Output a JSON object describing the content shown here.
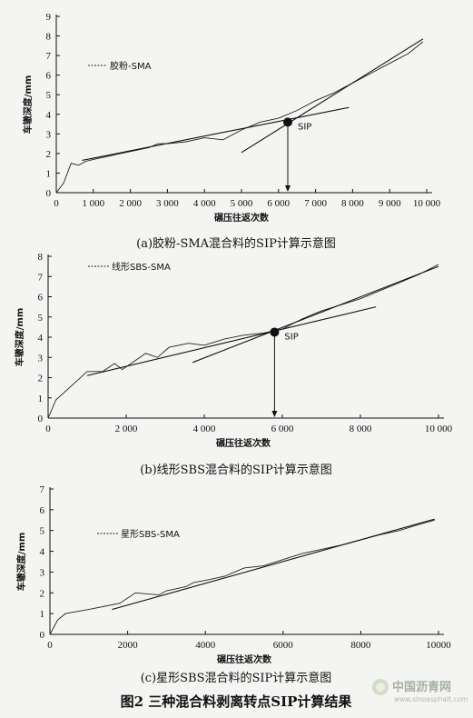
{
  "figure_title": "图2  三种混合料剥离转点SIP计算结果",
  "watermark": {
    "name": "中国沥青网",
    "url": "www.sinoasphalt.com"
  },
  "chart_data": [
    {
      "type": "line",
      "caption": "(a)胶粉-SMA混合料的SIP计算示意图",
      "xlabel": "碾压往返次数",
      "ylabel": "车辙深度/mm",
      "xlim": [
        0,
        10000
      ],
      "ylim": [
        0,
        9
      ],
      "xticks": [
        0,
        1000,
        2000,
        3000,
        4000,
        5000,
        6000,
        7000,
        8000,
        9000,
        10000
      ],
      "xtick_labels": [
        "0",
        "1 000",
        "2 000",
        "3 000",
        "4 000",
        "5 000",
        "6 000",
        "7 000",
        "8 000",
        "9 000",
        "10 000"
      ],
      "yticks": [
        0,
        1,
        2,
        3,
        4,
        5,
        6,
        7,
        8,
        9
      ],
      "legend": "胶粉-SMA",
      "sip_label": "SIP",
      "sip": {
        "x": 6250,
        "y": 3.6
      },
      "series": {
        "x": [
          0,
          200,
          400,
          600,
          800,
          1000,
          1500,
          2000,
          2500,
          2750,
          3000,
          3500,
          4000,
          4500,
          5000,
          5500,
          6000,
          6500,
          7000,
          7500,
          8000,
          8500,
          9000,
          9500,
          9900
        ],
        "y": [
          0,
          0.5,
          1.5,
          1.4,
          1.6,
          1.7,
          1.9,
          2.1,
          2.3,
          2.5,
          2.5,
          2.6,
          2.8,
          2.7,
          3.2,
          3.6,
          3.8,
          4.2,
          4.7,
          5.1,
          5.6,
          6.1,
          6.6,
          7.1,
          7.7
        ]
      },
      "fit1": {
        "x": [
          700,
          7900
        ],
        "y": [
          1.65,
          4.35
        ]
      },
      "fit2": {
        "x": [
          5000,
          9900
        ],
        "y": [
          2.05,
          7.85
        ]
      }
    },
    {
      "type": "line",
      "caption": "(b)线形SBS混合料的SIP计算示意图",
      "xlabel": "碾压往返次数",
      "ylabel": "车辙深度/mm",
      "xlim": [
        0,
        10000
      ],
      "ylim": [
        0,
        8
      ],
      "xticks": [
        0,
        2000,
        4000,
        6000,
        8000,
        10000
      ],
      "xtick_labels": [
        "0",
        "2 000",
        "4 000",
        "6 000",
        "8 000",
        "10 000"
      ],
      "yticks": [
        0,
        1,
        2,
        3,
        4,
        5,
        6,
        7,
        8
      ],
      "legend": "线形SBS-SMA",
      "sip_label": "SIP",
      "sip": {
        "x": 5800,
        "y": 4.25
      },
      "series": {
        "x": [
          0,
          200,
          600,
          1000,
          1400,
          1700,
          1900,
          2200,
          2500,
          2800,
          3100,
          3600,
          4000,
          4500,
          5000,
          5500,
          6000,
          6500,
          7000,
          7500,
          8000,
          8500,
          9000,
          9500,
          10000
        ],
        "y": [
          0,
          0.9,
          1.6,
          2.3,
          2.3,
          2.7,
          2.4,
          2.8,
          3.2,
          3.0,
          3.5,
          3.7,
          3.6,
          3.9,
          4.1,
          4.2,
          4.4,
          4.9,
          5.3,
          5.6,
          5.9,
          6.3,
          6.7,
          7.1,
          7.6
        ]
      },
      "fit1": {
        "x": [
          1000,
          8400
        ],
        "y": [
          2.1,
          5.5
        ]
      },
      "fit2": {
        "x": [
          3700,
          10000
        ],
        "y": [
          2.75,
          7.5
        ]
      }
    },
    {
      "type": "line",
      "caption": "(c)星形SBS混合料的SIP计算示意图",
      "xlabel": "碾压往返次数",
      "ylabel": "车辙深度/mm",
      "xlim": [
        0,
        10000
      ],
      "ylim": [
        0,
        7
      ],
      "xticks": [
        0,
        2000,
        4000,
        6000,
        8000,
        10000
      ],
      "xtick_labels": [
        "0",
        "2000",
        "4000",
        "6000",
        "8000",
        "10000"
      ],
      "yticks": [
        0,
        1,
        2,
        3,
        4,
        5,
        6,
        7
      ],
      "legend": "星形SBS-SMA",
      "series": {
        "x": [
          0,
          200,
          400,
          1000,
          1800,
          2200,
          2800,
          3000,
          3500,
          3700,
          4000,
          4500,
          5000,
          5500,
          6000,
          6500,
          7000,
          7500,
          7900,
          8500,
          9000,
          9500,
          9900
        ],
        "y": [
          0,
          0.7,
          1.0,
          1.2,
          1.5,
          2.0,
          1.9,
          2.1,
          2.3,
          2.5,
          2.6,
          2.8,
          3.2,
          3.3,
          3.6,
          3.9,
          4.1,
          4.3,
          4.5,
          4.8,
          5.0,
          5.3,
          5.5
        ]
      },
      "fit1": {
        "x": [
          1600,
          9900
        ],
        "y": [
          1.2,
          5.55
        ]
      }
    }
  ]
}
